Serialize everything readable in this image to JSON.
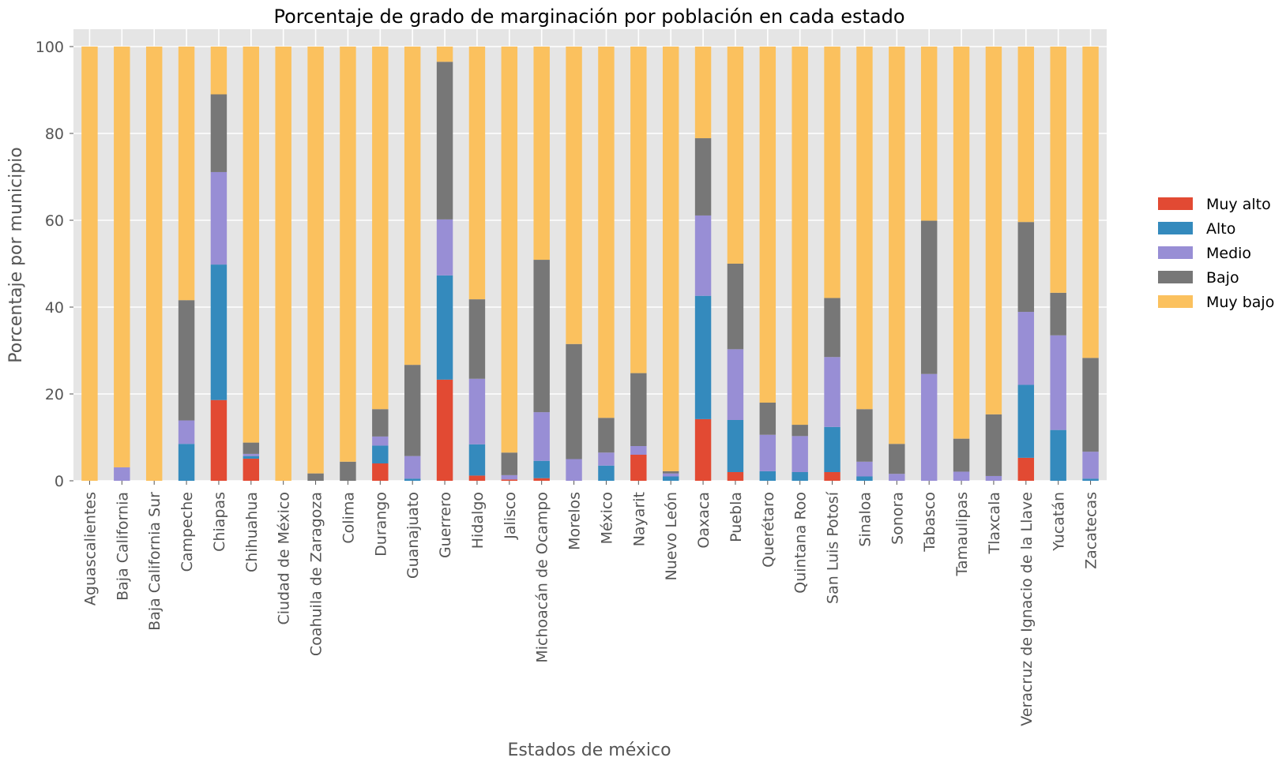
{
  "chart_data": {
    "type": "bar",
    "stacked": true,
    "title": "Porcentaje de grado de marginación por población en cada estado",
    "xlabel": "Estados de méxico",
    "ylabel": "Porcentaje por municipio",
    "ylim": [
      0,
      104
    ],
    "yticks": [
      0,
      20,
      40,
      60,
      80,
      100
    ],
    "grid": true,
    "legend_position": "right",
    "categories": [
      "Aguascalientes",
      "Baja California",
      "Baja California Sur",
      "Campeche",
      "Chiapas",
      "Chihuahua",
      "Ciudad de México",
      "Coahuila de Zaragoza",
      "Colima",
      "Durango",
      "Guanajuato",
      "Guerrero",
      "Hidalgo",
      "Jalisco",
      "Michoacán de Ocampo",
      "Morelos",
      "México",
      "Nayarit",
      "Nuevo León",
      "Oaxaca",
      "Puebla",
      "Querétaro",
      "Quintana Roo",
      "San Luis Potosí",
      "Sinaloa",
      "Sonora",
      "Tabasco",
      "Tamaulipas",
      "Tlaxcala",
      "Veracruz de Ignacio de la Llave",
      "Yucatán",
      "Zacatecas"
    ],
    "series": [
      {
        "name": "Muy alto",
        "color": "#E24A33",
        "values": [
          0,
          0,
          0,
          0,
          18.6,
          5.1,
          0,
          0,
          0,
          4.0,
          0,
          23.3,
          1.2,
          0.3,
          0.6,
          0,
          0,
          6.0,
          0,
          14.2,
          2.0,
          0,
          0,
          2.0,
          0,
          0,
          0,
          0,
          0,
          5.3,
          0,
          0
        ]
      },
      {
        "name": "Alto",
        "color": "#348ABD",
        "values": [
          0,
          0,
          0,
          8.5,
          31.2,
          0.6,
          0,
          0,
          0,
          4.1,
          0.5,
          24.0,
          7.2,
          0,
          4.0,
          0,
          3.5,
          0,
          1.0,
          28.4,
          12.0,
          2.2,
          2.0,
          10.4,
          1.0,
          0,
          0,
          0,
          0,
          16.8,
          11.7,
          0.5
        ]
      },
      {
        "name": "Medio",
        "color": "#988ED5",
        "values": [
          0,
          3.1,
          0,
          5.4,
          21.3,
          0.5,
          0,
          0,
          0,
          2.1,
          5.2,
          12.9,
          15.1,
          1.0,
          11.2,
          5.0,
          3.0,
          2.0,
          0.7,
          18.5,
          16.3,
          8.4,
          8.3,
          16.1,
          3.4,
          1.6,
          24.6,
          2.1,
          1.1,
          16.8,
          21.8,
          6.2
        ]
      },
      {
        "name": "Bajo",
        "color": "#777777",
        "values": [
          0,
          0,
          0,
          27.7,
          17.9,
          2.6,
          0,
          1.7,
          4.4,
          6.3,
          21.0,
          36.3,
          18.3,
          5.2,
          35.1,
          26.5,
          8.0,
          16.8,
          0.5,
          17.8,
          19.7,
          7.4,
          2.6,
          13.6,
          12.1,
          6.9,
          35.3,
          7.6,
          14.2,
          20.7,
          9.8,
          21.6
        ]
      },
      {
        "name": "Muy bajo",
        "color": "#FBC15E",
        "values": [
          100,
          96.9,
          100,
          58.4,
          11.0,
          91.2,
          100,
          98.3,
          95.6,
          83.5,
          73.3,
          3.5,
          58.2,
          93.5,
          49.1,
          68.5,
          85.5,
          75.2,
          97.8,
          21.1,
          50.0,
          82.0,
          87.1,
          57.9,
          83.5,
          91.5,
          40.1,
          90.3,
          84.7,
          40.4,
          56.7,
          71.7
        ]
      }
    ]
  }
}
